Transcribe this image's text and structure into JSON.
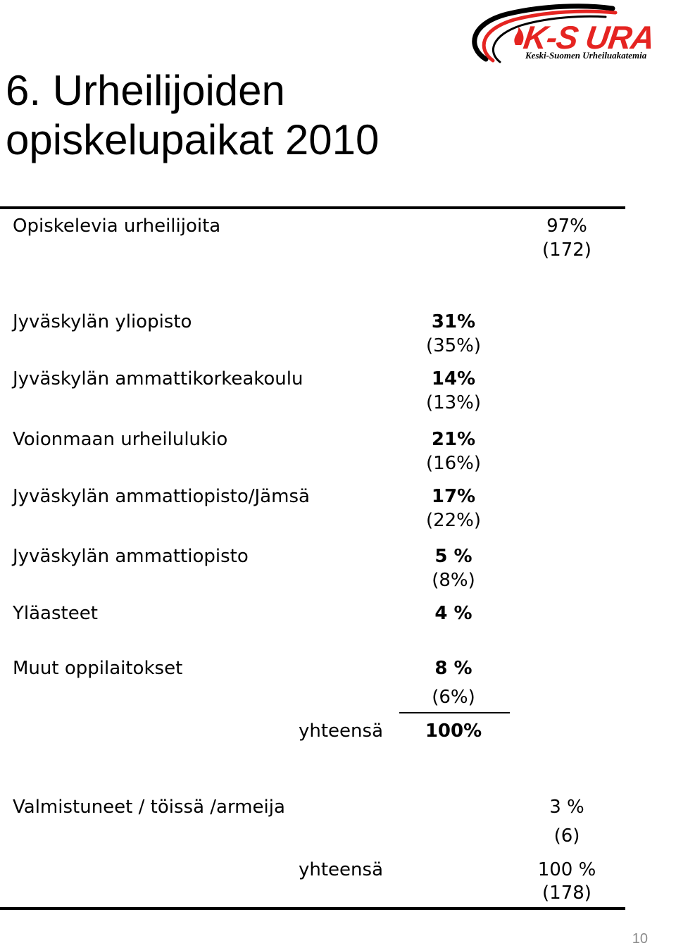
{
  "logo": {
    "main": "K-S URA",
    "sub": "Keski-Suomen Urheiluakatemia"
  },
  "title": {
    "line1": "6. Urheilijoiden",
    "line2": "opiskelupaikat 2010"
  },
  "studying": {
    "label": "Opiskelevia urheilijoita",
    "pct": "97%",
    "count": "(172)"
  },
  "rows": [
    {
      "label": "Jyväskylän yliopisto",
      "pct": "31%",
      "prev": "(35%)"
    },
    {
      "label": "Jyväskylän ammattikorkeakoulu",
      "pct": "14%",
      "prev": "(13%)"
    },
    {
      "label": "Voionmaan urheilulukio",
      "pct": "21%",
      "prev": "(16%)"
    },
    {
      "label": "Jyväskylän ammattiopisto/Jämsä",
      "pct": "17%",
      "prev": "(22%)"
    },
    {
      "label": "Jyväskylän ammattiopisto",
      "pct": "5 %",
      "prev": "(8%)"
    },
    {
      "label": "Yläasteet",
      "pct": "4 %",
      "prev": ""
    },
    {
      "label": "Muut oppilaitokset",
      "pct": "8 %",
      "prev": "(6%)"
    }
  ],
  "subtotal": {
    "label": "yhteensä",
    "value": "100%"
  },
  "graduated": {
    "label": "Valmistuneet / töissä /armeija",
    "pct": "3 %",
    "count": "(6)"
  },
  "total": {
    "label": "yhteensä",
    "pct": "100 %",
    "count": "(178)"
  },
  "page_number": "10",
  "colors": {
    "logo_red": "#e52421",
    "page_number": "#8c8c8c"
  }
}
